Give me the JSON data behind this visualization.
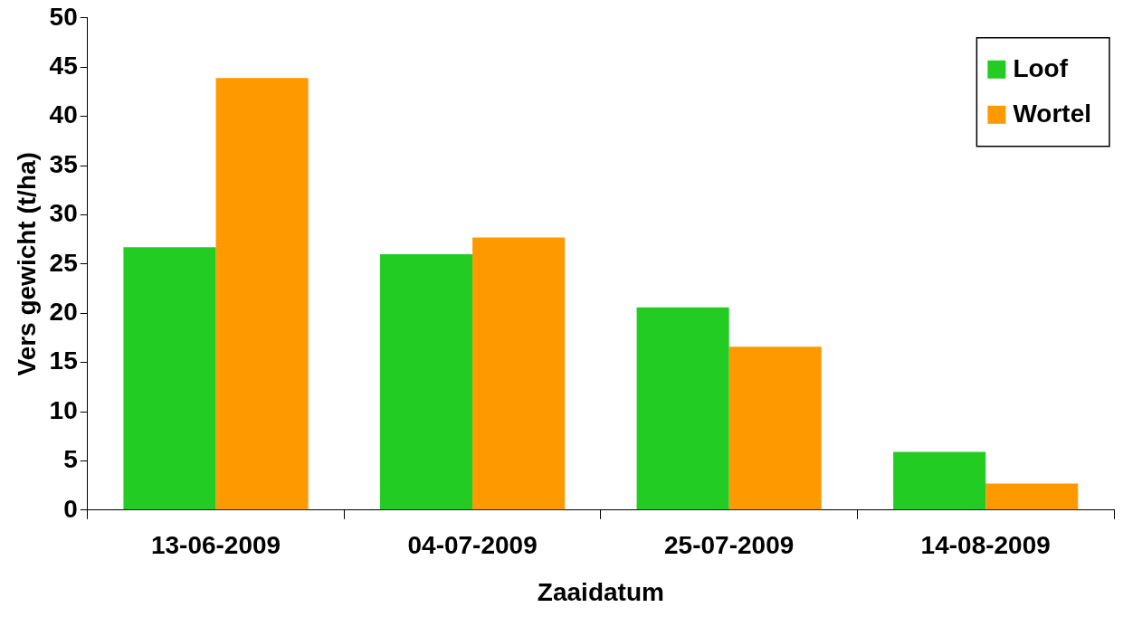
{
  "chart_data": {
    "type": "bar",
    "xlabel": "Zaaidatum",
    "ylabel": "Vers gewicht (t/ha)",
    "categories": [
      "13-06-2009",
      "04-07-2009",
      "25-07-2009",
      "14-08-2009"
    ],
    "series": [
      {
        "name": "Loof",
        "color": "#22cc22",
        "values": [
          26.7,
          26.0,
          20.6,
          5.9
        ]
      },
      {
        "name": "Wortel",
        "color": "#ff9900",
        "values": [
          43.9,
          27.7,
          16.6,
          2.7
        ]
      }
    ],
    "ylim": [
      0,
      50
    ],
    "yticks": [
      0,
      5,
      10,
      15,
      20,
      25,
      30,
      35,
      40,
      45,
      50
    ],
    "grid": false,
    "legend": "top right"
  }
}
